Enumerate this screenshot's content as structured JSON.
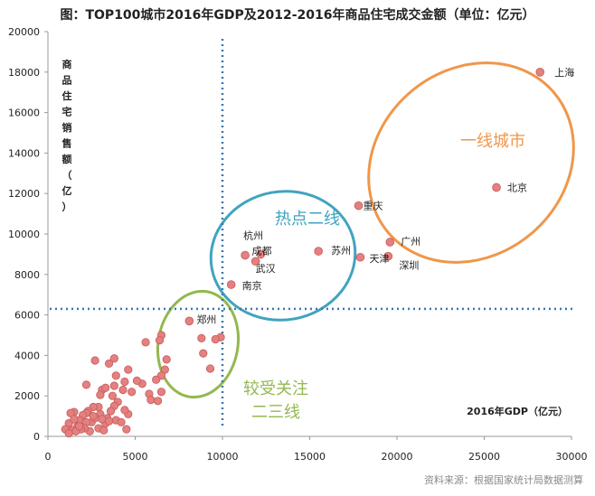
{
  "chart_data": {
    "type": "scatter",
    "title": "图：TOP100城市2016年GDP及2012-2016年商品住宅成交金额（单位：亿元）",
    "xlabel": "2016年GDP（亿元）",
    "ylabel": "商品住宅销售额（亿）",
    "xlim": [
      0,
      30000
    ],
    "ylim": [
      0,
      20000
    ],
    "x_ticks": [
      0,
      5000,
      10000,
      15000,
      20000,
      25000,
      30000
    ],
    "y_ticks": [
      0,
      2000,
      4000,
      6000,
      8000,
      10000,
      12000,
      14000,
      16000,
      18000,
      20000
    ],
    "grid": false,
    "reference_lines": {
      "x": 10000,
      "y": 6300
    },
    "source": "资料来源：根据国家统计局数据测算",
    "labeled_points": [
      {
        "name": "上海",
        "x": 28200,
        "y": 18000
      },
      {
        "name": "北京",
        "x": 25700,
        "y": 12300
      },
      {
        "name": "重庆",
        "x": 17800,
        "y": 11400
      },
      {
        "name": "广州",
        "x": 19600,
        "y": 9600
      },
      {
        "name": "深圳",
        "x": 19500,
        "y": 8900
      },
      {
        "name": "天津",
        "x": 17900,
        "y": 8850
      },
      {
        "name": "苏州",
        "x": 15500,
        "y": 9150
      },
      {
        "name": "成都",
        "x": 12200,
        "y": 9000
      },
      {
        "name": "武汉",
        "x": 11900,
        "y": 8650
      },
      {
        "name": "杭州",
        "x": 11300,
        "y": 8950
      },
      {
        "name": "南京",
        "x": 10500,
        "y": 7500
      },
      {
        "name": "郑州",
        "x": 8100,
        "y": 5700
      }
    ],
    "other_points": [
      [
        9900,
        4900
      ],
      [
        9600,
        4800
      ],
      [
        8800,
        4850
      ],
      [
        8900,
        4100
      ],
      [
        9300,
        3350
      ],
      [
        6500,
        5000
      ],
      [
        6400,
        4750
      ],
      [
        5600,
        4650
      ],
      [
        6800,
        3800
      ],
      [
        6700,
        3300
      ],
      [
        6500,
        3000
      ],
      [
        6200,
        2800
      ],
      [
        6500,
        2200
      ],
      [
        5800,
        2100
      ],
      [
        5900,
        1800
      ],
      [
        6300,
        1750
      ],
      [
        5400,
        2600
      ],
      [
        5100,
        2750
      ],
      [
        4800,
        2200
      ],
      [
        4600,
        3300
      ],
      [
        4400,
        2700
      ],
      [
        4300,
        2300
      ],
      [
        3800,
        3850
      ],
      [
        3500,
        3600
      ],
      [
        2700,
        3750
      ],
      [
        3900,
        3000
      ],
      [
        3800,
        2500
      ],
      [
        3700,
        2000
      ],
      [
        3100,
        2300
      ],
      [
        3300,
        2400
      ],
      [
        3000,
        2050
      ],
      [
        2200,
        2550
      ],
      [
        4000,
        1700
      ],
      [
        4600,
        1100
      ],
      [
        4400,
        1300
      ],
      [
        3800,
        1500
      ],
      [
        3600,
        1250
      ],
      [
        3400,
        900
      ],
      [
        3900,
        800
      ],
      [
        4200,
        700
      ],
      [
        3000,
        1100
      ],
      [
        2900,
        1450
      ],
      [
        2600,
        1450
      ],
      [
        2300,
        1250
      ],
      [
        2200,
        1150
      ],
      [
        2000,
        1050
      ],
      [
        1800,
        800
      ],
      [
        1700,
        500
      ],
      [
        2500,
        700
      ],
      [
        2700,
        900
      ],
      [
        2200,
        700
      ],
      [
        1500,
        1200
      ],
      [
        1300,
        1150
      ],
      [
        1200,
        650
      ],
      [
        1400,
        300
      ],
      [
        1000,
        350
      ],
      [
        1500,
        850
      ],
      [
        2400,
        250
      ],
      [
        2900,
        400
      ],
      [
        3300,
        650
      ],
      [
        3500,
        750
      ],
      [
        3100,
        850
      ],
      [
        2100,
        400
      ],
      [
        1900,
        350
      ],
      [
        1600,
        250
      ],
      [
        2600,
        1000
      ],
      [
        1200,
        150
      ],
      [
        1800,
        500
      ],
      [
        4500,
        350
      ],
      [
        3200,
        300
      ]
    ],
    "groups": [
      {
        "label": "一线城市",
        "color": "#f0964a"
      },
      {
        "label": "热点二线",
        "color": "#41a3bf"
      },
      {
        "label": "较受关注",
        "label2": "二三线",
        "color": "#93b84f"
      }
    ]
  },
  "colors": {
    "point_fill": "#e48080",
    "point_stroke": "#c75a5a",
    "reference_line": "#3a77b5",
    "axis": "#9a9a9a",
    "text": "#222222",
    "source_text": "#8a8a8a"
  }
}
